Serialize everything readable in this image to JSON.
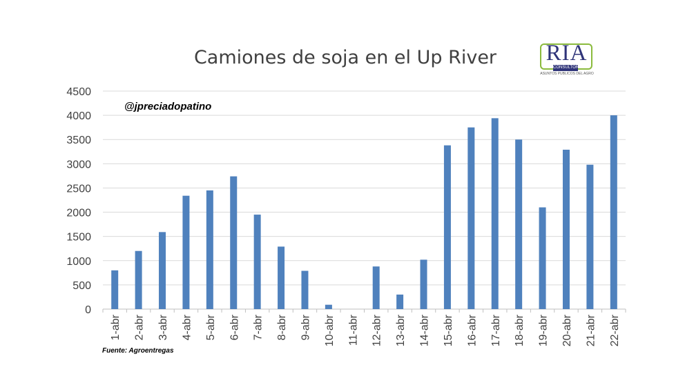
{
  "chart_data": {
    "type": "bar",
    "title": "Camiones de soja en el Up River",
    "xlabel": "",
    "ylabel": "",
    "ylim": [
      0,
      4500
    ],
    "yticks": [
      0,
      500,
      1000,
      1500,
      2000,
      2500,
      3000,
      3500,
      4000,
      4500
    ],
    "grid": true,
    "categories": [
      "1-abr",
      "2-abr",
      "3-abr",
      "4-abr",
      "5-abr",
      "6-abr",
      "7-abr",
      "8-abr",
      "9-abr",
      "10-abr",
      "11-abr",
      "12-abr",
      "13-abr",
      "14-abr",
      "15-abr",
      "16-abr",
      "17-abr",
      "18-abr",
      "19-abr",
      "20-abr",
      "21-abr",
      "22-abr"
    ],
    "values": [
      800,
      1200,
      1590,
      2340,
      2450,
      2740,
      1950,
      1290,
      790,
      90,
      0,
      880,
      300,
      1020,
      3380,
      3750,
      3940,
      3500,
      2100,
      3290,
      2980,
      4000
    ],
    "bar_color": "#4f81bd"
  },
  "annotations": {
    "handle": "@jpreciadopatino",
    "source": "Fuente: Agroentregas"
  },
  "logo": {
    "text": "RIA",
    "band": "CONSULTORES",
    "tagline": "ASUNTOS PUBLICOS DEL AGRO"
  }
}
